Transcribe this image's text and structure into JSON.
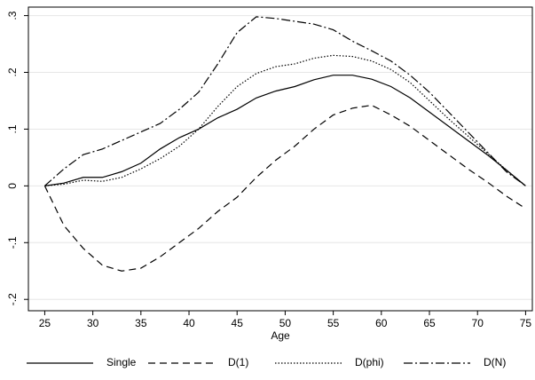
{
  "chart_data": {
    "type": "line",
    "x": [
      25,
      27,
      29,
      31,
      33,
      35,
      37,
      39,
      41,
      43,
      45,
      47,
      49,
      51,
      53,
      55,
      57,
      59,
      61,
      63,
      65,
      67,
      69,
      71,
      73,
      75
    ],
    "series": [
      {
        "name": "Single",
        "color": "#000000",
        "dash": "none",
        "values": [
          0,
          0.005,
          0.015,
          0.015,
          0.025,
          0.04,
          0.065,
          0.085,
          0.1,
          0.12,
          0.135,
          0.155,
          0.167,
          0.175,
          0.187,
          0.195,
          0.195,
          0.188,
          0.175,
          0.155,
          0.13,
          0.105,
          0.08,
          0.055,
          0.028,
          0
        ]
      },
      {
        "name": "D(1)",
        "color": "#000000",
        "dash": "8,5",
        "values": [
          0,
          -0.07,
          -0.11,
          -0.14,
          -0.15,
          -0.145,
          -0.125,
          -0.1,
          -0.075,
          -0.045,
          -0.02,
          0.015,
          0.045,
          0.07,
          0.1,
          0.125,
          0.137,
          0.142,
          0.125,
          0.105,
          0.08,
          0.055,
          0.03,
          0.007,
          -0.018,
          -0.04
        ]
      },
      {
        "name": "D(phi)",
        "color": "#000000",
        "dash": "1.5,2",
        "values": [
          0,
          0.003,
          0.01,
          0.008,
          0.015,
          0.03,
          0.048,
          0.07,
          0.1,
          0.14,
          0.175,
          0.198,
          0.21,
          0.215,
          0.225,
          0.23,
          0.228,
          0.22,
          0.205,
          0.182,
          0.15,
          0.118,
          0.088,
          0.058,
          0.028,
          0
        ]
      },
      {
        "name": "D(N)",
        "color": "#000000",
        "dash": "10,3,2,3",
        "values": [
          0,
          0.03,
          0.055,
          0.065,
          0.08,
          0.095,
          0.11,
          0.135,
          0.165,
          0.215,
          0.27,
          0.298,
          0.295,
          0.29,
          0.285,
          0.275,
          0.255,
          0.238,
          0.22,
          0.195,
          0.165,
          0.13,
          0.095,
          0.06,
          0.025,
          0
        ]
      }
    ],
    "x_label": "Age",
    "xlim": [
      23.3,
      75.7
    ],
    "xticks": [
      25,
      30,
      35,
      40,
      45,
      50,
      55,
      60,
      65,
      70,
      75
    ],
    "ylim": [
      -0.22,
      0.315
    ],
    "yticks": [
      {
        "value": -0.2,
        "label": "-.2"
      },
      {
        "value": -0.1,
        "label": "-.1"
      },
      0,
      {
        "value": 0.1,
        "label": ".1"
      },
      {
        "value": 0.2,
        "label": ".2"
      },
      {
        "value": 0.3,
        "label": ".3"
      }
    ],
    "grid": true,
    "legend": "bottom"
  }
}
